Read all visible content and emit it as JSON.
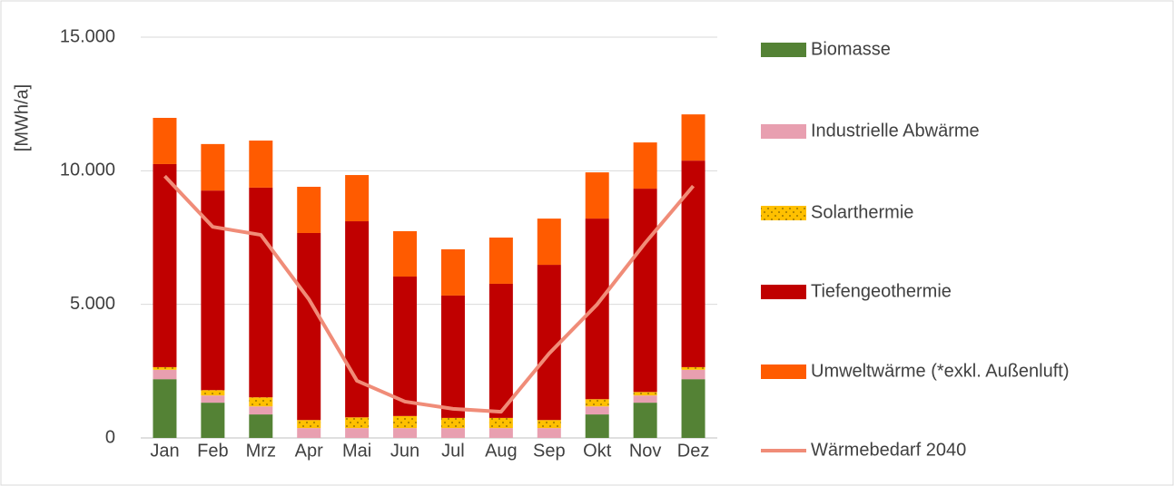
{
  "chart_data": {
    "type": "bar",
    "y_label": "[MWh/a]",
    "categories": [
      "Jan",
      "Feb",
      "Mrz",
      "Apr",
      "Mai",
      "Jun",
      "Jul",
      "Aug",
      "Sep",
      "Okt",
      "Nov",
      "Dez"
    ],
    "series": [
      {
        "name": "Biomasse",
        "color": "#548235",
        "values": [
          2200,
          1320,
          880,
          0,
          0,
          0,
          0,
          0,
          0,
          880,
          1320,
          2200
        ]
      },
      {
        "name": "Industrielle Abwärme",
        "color": "#e89fb0",
        "values": [
          350,
          270,
          300,
          370,
          370,
          370,
          370,
          370,
          370,
          300,
          270,
          350
        ]
      },
      {
        "name": "Solarthermie",
        "color": "#ffc000",
        "pattern": "dots",
        "values": [
          100,
          200,
          340,
          300,
          400,
          450,
          380,
          380,
          300,
          270,
          130,
          100
        ]
      },
      {
        "name": "Tiefengeothermie",
        "color": "#c00000",
        "values": [
          7600,
          7470,
          7850,
          7000,
          7340,
          5220,
          4580,
          5020,
          5810,
          6760,
          7610,
          7730
        ]
      },
      {
        "name": "Umweltwärme (*exkl. Außenluft)",
        "color": "#ff5b00",
        "values": [
          1730,
          1740,
          1760,
          1730,
          1730,
          1700,
          1730,
          1730,
          1730,
          1730,
          1730,
          1730
        ]
      },
      {
        "name": "Wärmebedarf 2040",
        "color": "#f08c78",
        "type": "line",
        "values": [
          9800,
          7900,
          7600,
          5190,
          2140,
          1360,
          1090,
          980,
          3160,
          5000,
          7300,
          9430
        ]
      }
    ],
    "ylim": [
      0,
      15000
    ],
    "yticks": [
      0,
      {
        "value": 5000,
        "label": "5.000"
      },
      {
        "value": 10000,
        "label": "10.000"
      },
      {
        "value": 15000,
        "label": "15.000"
      }
    ],
    "grid": true,
    "legend": "right"
  }
}
